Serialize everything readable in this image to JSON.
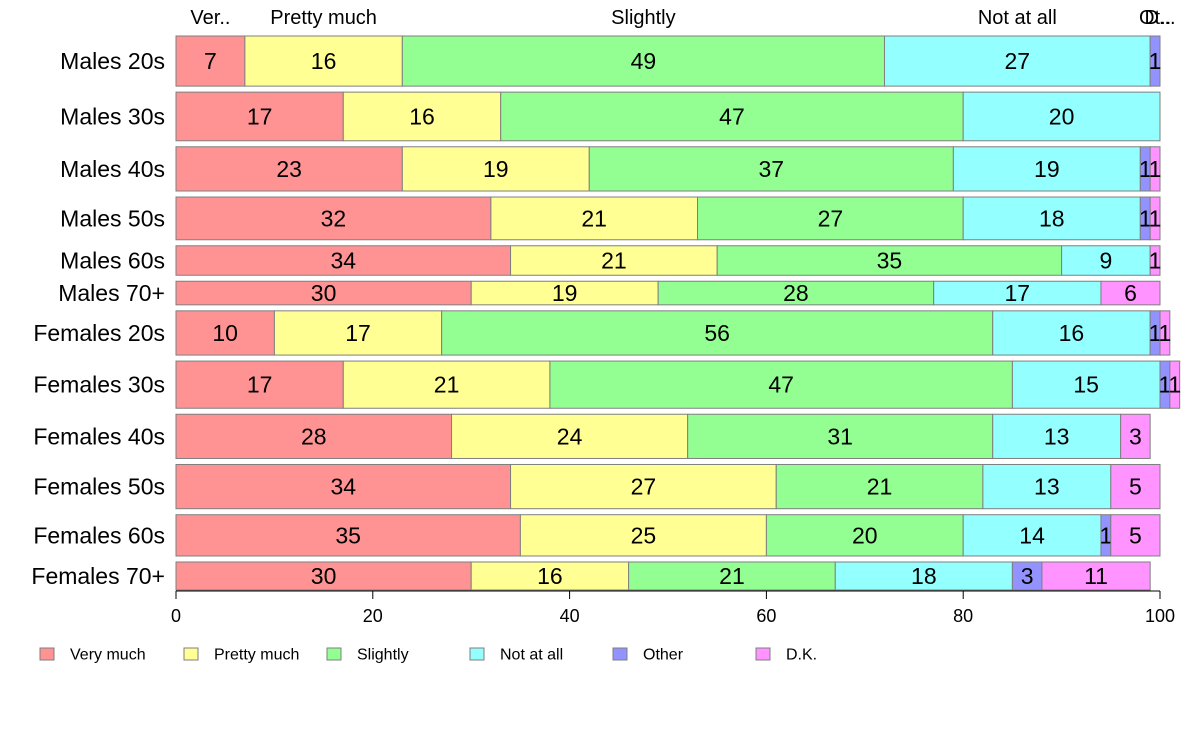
{
  "chart_data": {
    "type": "bar",
    "orientation": "horizontal",
    "stacked": true,
    "title": "",
    "xlabel": "",
    "ylabel": "",
    "xlim": [
      0,
      100
    ],
    "x_ticks": [
      0,
      20,
      40,
      60,
      80,
      100
    ],
    "grid": false,
    "legend_position": "bottom",
    "top_labels": [
      "Ver..",
      "Pretty much",
      "Slightly",
      "Not at all",
      "Ot..",
      "D..."
    ],
    "categories": [
      "Males 20s",
      "Males 30s",
      "Males 40s",
      "Males 50s",
      "Males 60s",
      "Males 70+",
      "Females 20s",
      "Females 30s",
      "Females 40s",
      "Females 50s",
      "Females 60s",
      "Females 70+"
    ],
    "relative_counts": [
      170,
      165,
      150,
      145,
      100,
      80,
      150,
      160,
      150,
      150,
      140,
      95
    ],
    "series": [
      {
        "name": "Very much",
        "color": "#ff9393",
        "values": [
          7,
          17,
          23,
          32,
          34,
          30,
          10,
          17,
          28,
          34,
          35,
          30
        ]
      },
      {
        "name": "Pretty much",
        "color": "#ffff93",
        "values": [
          16,
          16,
          19,
          21,
          21,
          19,
          17,
          21,
          24,
          27,
          25,
          16
        ]
      },
      {
        "name": "Slightly",
        "color": "#93ff93",
        "values": [
          49,
          47,
          37,
          27,
          35,
          28,
          56,
          47,
          31,
          21,
          20,
          21
        ]
      },
      {
        "name": "Not at all",
        "color": "#93ffff",
        "values": [
          27,
          20,
          19,
          18,
          9,
          17,
          16,
          15,
          13,
          13,
          14,
          18
        ]
      },
      {
        "name": "Other",
        "color": "#9393ff",
        "values": [
          1,
          0,
          1,
          1,
          0,
          0,
          1,
          1,
          0,
          0,
          1,
          3
        ]
      },
      {
        "name": "D.K.",
        "color": "#ff93ff",
        "values": [
          0,
          0,
          1,
          1,
          1,
          6,
          1,
          1,
          3,
          5,
          5,
          11
        ]
      }
    ]
  }
}
